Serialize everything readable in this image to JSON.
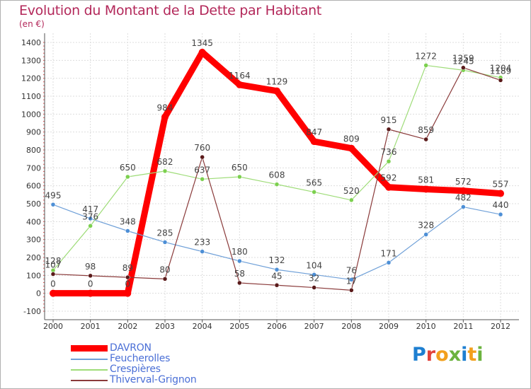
{
  "header": {
    "title": "Evolution du Montant de la Dette par Habitant",
    "subtitle": "(en €)"
  },
  "logo": {
    "text": "Proxiti",
    "colors": [
      "#1e7fd1",
      "#e2423b",
      "#f2a01d",
      "#6cb33f",
      "#1e7fd1",
      "#f2a01d",
      "#6cb33f"
    ]
  },
  "chart_data": {
    "type": "line",
    "title": "Evolution du Montant de la Dette par Habitant",
    "subtitle": "(en €)",
    "xlabel": "",
    "ylabel": "",
    "x": [
      "2000",
      "2001",
      "2002",
      "2003",
      "2004",
      "2005",
      "2006",
      "2007",
      "2008",
      "2009",
      "2010",
      "2011",
      "2012"
    ],
    "ylim": [
      -100,
      1400
    ],
    "yticks": [
      -100,
      0,
      100,
      200,
      300,
      400,
      500,
      600,
      700,
      800,
      900,
      1000,
      1100,
      1200,
      1300,
      1400
    ],
    "grid": true,
    "legend_position": "bottom-left",
    "series": [
      {
        "name": "DAVRON",
        "color": "#ff0000",
        "values": [
          0,
          0,
          0,
          984,
          1345,
          1164,
          1129,
          847,
          809,
          592,
          581,
          572,
          557
        ],
        "labels": [
          "0",
          "0",
          "0",
          "984",
          "1345",
          "1164",
          "1129",
          "847",
          "809",
          "592",
          "581",
          "572",
          "557"
        ]
      },
      {
        "name": "Feucherolles",
        "color": "#6fa0d8",
        "values": [
          495,
          417,
          348,
          285,
          233,
          180,
          132,
          104,
          76,
          171,
          328,
          482,
          440
        ],
        "labels": [
          "495",
          "417",
          "348",
          "285",
          "233",
          "180",
          "132",
          "104",
          "76",
          "171",
          "328",
          "482",
          "440"
        ]
      },
      {
        "name": "Crespières",
        "color": "#9edc78",
        "values": [
          128,
          376,
          650,
          682,
          637,
          650,
          608,
          565,
          520,
          736,
          1272,
          1245,
          1204
        ],
        "labels": [
          "128",
          "376",
          "650",
          "682",
          "637",
          "650",
          "608",
          "565",
          "520",
          "736",
          "1272",
          "1245",
          "1204"
        ]
      },
      {
        "name": "Thiverval-Grignon",
        "color": "#8a3a3a",
        "values": [
          107,
          98,
          89,
          80,
          760,
          58,
          45,
          32,
          17,
          915,
          859,
          1259,
          1189
        ],
        "labels": [
          "107",
          "98",
          "89",
          "80",
          "760",
          "58",
          "45",
          "32",
          "17",
          "915",
          "859",
          "1259",
          "1189"
        ]
      }
    ]
  }
}
